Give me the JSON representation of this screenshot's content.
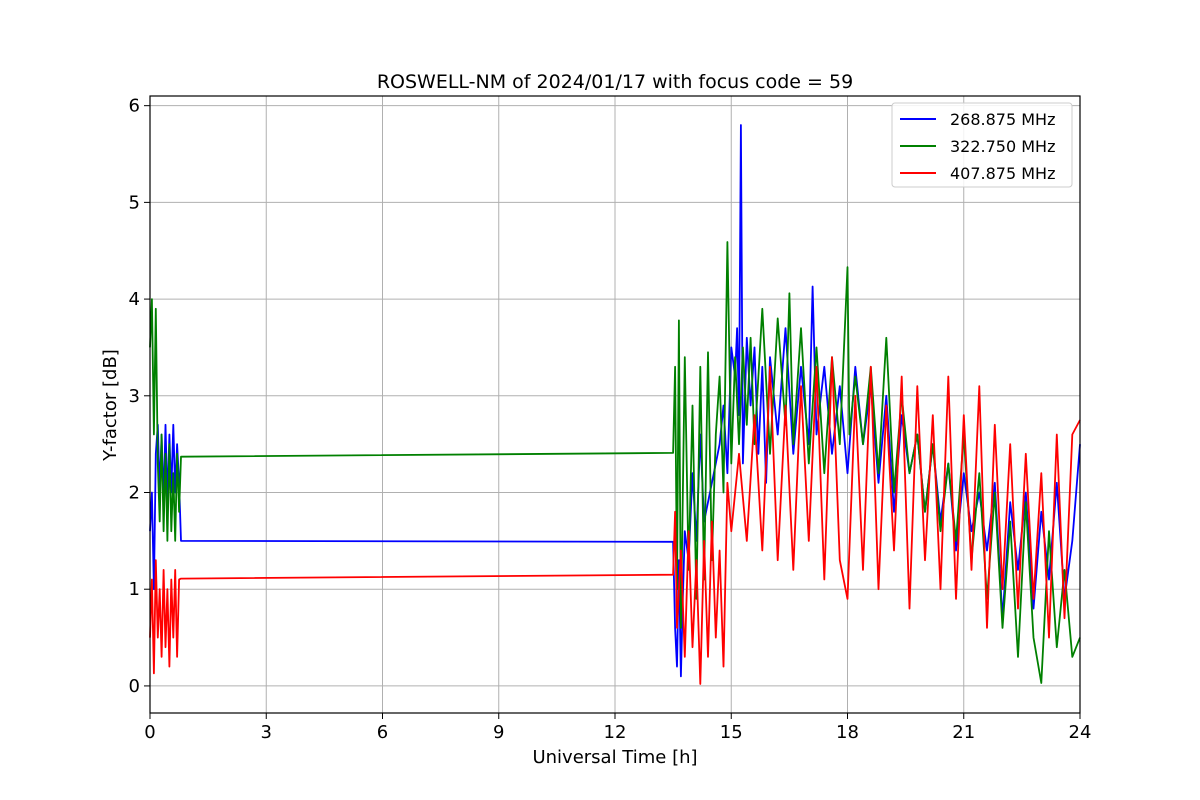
{
  "chart_data": {
    "type": "line",
    "title": "ROSWELL-NM of 2024/01/17 with focus code = 59",
    "xlabel": "Universal Time [h]",
    "ylabel": "Y-factor [dB]",
    "xlim": [
      0,
      24
    ],
    "ylim": [
      -0.28,
      6.1
    ],
    "xticks": [
      0,
      3,
      6,
      9,
      12,
      15,
      18,
      21,
      24
    ],
    "yticks": [
      0,
      1,
      2,
      3,
      4,
      5,
      6
    ],
    "grid": true,
    "legend_position": "top-right",
    "series": [
      {
        "name": "268.875 MHz",
        "color": "#0000ff",
        "x": [
          0.0,
          0.05,
          0.1,
          0.15,
          0.2,
          0.25,
          0.3,
          0.35,
          0.4,
          0.45,
          0.5,
          0.55,
          0.6,
          0.65,
          0.7,
          0.75,
          0.8,
          13.5,
          13.55,
          13.6,
          13.65,
          13.7,
          13.75,
          13.8,
          13.9,
          14.0,
          14.1,
          14.2,
          14.3,
          14.4,
          14.5,
          14.6,
          14.7,
          14.8,
          14.9,
          15.0,
          15.1,
          15.15,
          15.2,
          15.25,
          15.3,
          15.4,
          15.5,
          15.6,
          15.7,
          15.8,
          15.9,
          16.0,
          16.2,
          16.4,
          16.6,
          16.8,
          17.0,
          17.1,
          17.2,
          17.4,
          17.6,
          17.8,
          18.0,
          18.2,
          18.4,
          18.6,
          18.8,
          19.0,
          19.2,
          19.4,
          19.6,
          19.8,
          20.0,
          20.2,
          20.4,
          20.6,
          20.8,
          21.0,
          21.2,
          21.4,
          21.6,
          21.8,
          22.0,
          22.2,
          22.4,
          22.6,
          22.8,
          23.0,
          23.2,
          23.4,
          23.6,
          23.8,
          24.0
        ],
        "y": [
          1.6,
          2.0,
          1.0,
          2.4,
          2.7,
          2.0,
          2.6,
          1.9,
          2.7,
          1.9,
          2.6,
          2.0,
          2.7,
          2.0,
          2.5,
          2.1,
          1.5,
          1.49,
          0.6,
          0.2,
          1.3,
          0.1,
          0.9,
          1.6,
          1.3,
          2.2,
          1.5,
          2.6,
          1.7,
          1.9,
          2.1,
          2.3,
          2.5,
          2.9,
          2.2,
          3.5,
          3.2,
          3.7,
          2.8,
          5.8,
          2.3,
          3.6,
          2.9,
          3.5,
          2.4,
          3.3,
          2.1,
          3.4,
          2.6,
          3.7,
          2.4,
          3.3,
          2.5,
          4.13,
          2.6,
          3.3,
          2.4,
          3.1,
          2.2,
          3.3,
          2.5,
          3.1,
          2.1,
          3.0,
          1.8,
          2.8,
          2.2,
          2.6,
          1.8,
          2.5,
          1.7,
          2.3,
          1.4,
          2.2,
          1.6,
          2.0,
          1.4,
          2.1,
          0.7,
          1.9,
          1.2,
          2.0,
          0.8,
          1.8,
          1.1,
          2.1,
          0.9,
          1.5,
          2.5
        ]
      },
      {
        "name": "322.750 MHz",
        "color": "#008000",
        "x": [
          0.0,
          0.05,
          0.1,
          0.15,
          0.2,
          0.25,
          0.3,
          0.35,
          0.4,
          0.45,
          0.5,
          0.55,
          0.6,
          0.65,
          0.7,
          0.75,
          0.8,
          13.5,
          13.55,
          13.6,
          13.65,
          13.7,
          13.8,
          13.9,
          14.0,
          14.1,
          14.2,
          14.3,
          14.4,
          14.5,
          14.6,
          14.7,
          14.8,
          14.9,
          15.0,
          15.1,
          15.2,
          15.3,
          15.4,
          15.5,
          15.6,
          15.8,
          16.0,
          16.2,
          16.4,
          16.5,
          16.6,
          16.8,
          17.0,
          17.2,
          17.4,
          17.6,
          17.8,
          18.0,
          18.05,
          18.2,
          18.4,
          18.6,
          18.8,
          19.0,
          19.2,
          19.4,
          19.6,
          19.8,
          20.0,
          20.2,
          20.4,
          20.6,
          20.8,
          21.0,
          21.2,
          21.4,
          21.6,
          21.8,
          22.0,
          22.2,
          22.4,
          22.6,
          22.8,
          23.0,
          23.2,
          23.4,
          23.6,
          23.8,
          24.0
        ],
        "y": [
          3.5,
          4.0,
          2.6,
          3.9,
          2.3,
          1.7,
          2.6,
          1.6,
          2.4,
          1.5,
          2.5,
          1.6,
          2.2,
          1.5,
          2.4,
          1.8,
          2.37,
          2.41,
          3.3,
          1.0,
          3.78,
          0.6,
          3.4,
          1.2,
          2.9,
          0.9,
          3.3,
          1.1,
          3.45,
          1.3,
          2.6,
          3.2,
          2.0,
          4.59,
          2.3,
          3.4,
          2.5,
          3.5,
          2.7,
          3.6,
          2.5,
          3.9,
          2.4,
          3.8,
          2.7,
          4.06,
          2.5,
          3.7,
          2.3,
          3.5,
          2.2,
          3.4,
          2.5,
          4.33,
          2.6,
          3.2,
          2.5,
          3.3,
          2.2,
          3.6,
          2.0,
          3.0,
          2.2,
          2.6,
          1.8,
          2.5,
          1.6,
          2.3,
          1.5,
          2.6,
          1.3,
          2.2,
          0.9,
          2.0,
          0.6,
          1.7,
          0.3,
          1.9,
          0.5,
          0.03,
          1.6,
          0.4,
          1.2,
          0.3,
          0.5
        ]
      },
      {
        "name": "407.875 MHz",
        "color": "#ff0000",
        "x": [
          0.0,
          0.05,
          0.1,
          0.15,
          0.2,
          0.25,
          0.3,
          0.35,
          0.4,
          0.45,
          0.5,
          0.55,
          0.6,
          0.65,
          0.7,
          0.75,
          0.8,
          13.5,
          13.55,
          13.6,
          13.7,
          13.8,
          13.9,
          14.0,
          14.1,
          14.2,
          14.3,
          14.4,
          14.5,
          14.6,
          14.7,
          14.8,
          14.9,
          15.0,
          15.2,
          15.4,
          15.6,
          15.8,
          16.0,
          16.2,
          16.4,
          16.6,
          16.8,
          17.0,
          17.2,
          17.4,
          17.6,
          17.8,
          18.0,
          18.2,
          18.4,
          18.6,
          18.8,
          19.0,
          19.2,
          19.4,
          19.6,
          19.8,
          20.0,
          20.2,
          20.4,
          20.6,
          20.8,
          21.0,
          21.2,
          21.4,
          21.6,
          21.8,
          22.0,
          22.2,
          22.4,
          22.6,
          22.8,
          23.0,
          23.2,
          23.4,
          23.6,
          23.8,
          24.0
        ],
        "y": [
          0.5,
          1.1,
          0.13,
          1.3,
          0.5,
          1.0,
          0.3,
          1.2,
          0.4,
          1.0,
          0.2,
          1.1,
          0.5,
          1.2,
          0.3,
          1.1,
          1.11,
          1.15,
          1.8,
          0.6,
          1.4,
          0.3,
          1.6,
          0.4,
          1.3,
          0.02,
          1.5,
          0.3,
          1.7,
          0.5,
          1.4,
          0.2,
          2.1,
          1.6,
          2.4,
          1.5,
          2.8,
          1.4,
          3.3,
          1.3,
          2.9,
          1.2,
          3.1,
          1.5,
          3.3,
          1.1,
          3.4,
          1.3,
          0.9,
          3.0,
          1.2,
          3.3,
          1.0,
          2.9,
          1.4,
          3.2,
          0.8,
          3.1,
          1.3,
          2.8,
          1.0,
          3.2,
          0.9,
          2.8,
          1.2,
          3.1,
          0.6,
          2.7,
          1.0,
          2.5,
          0.8,
          2.4,
          0.9,
          2.2,
          0.5,
          2.6,
          0.7,
          2.6,
          2.75
        ]
      }
    ]
  }
}
